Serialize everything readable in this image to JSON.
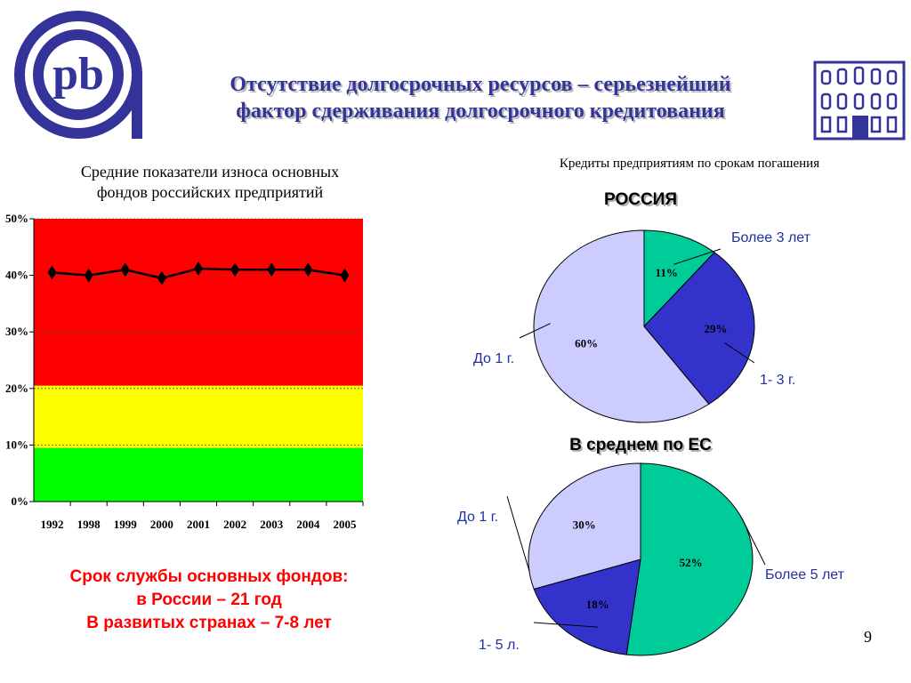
{
  "header": {
    "title_line1": "Отсутствие долгосрочных ресурсов – серьезнейший",
    "title_line2": "фактор сдерживания долгосрочного кредитования",
    "logo_text": "pb",
    "logo_icon": "pb-bank-logo-icon",
    "building_icon": "building-icon"
  },
  "left": {
    "title_line1": "Средние показатели износа основных",
    "title_line2": "фондов российских предприятий"
  },
  "right": {
    "title": "Кредиты предприятиям по срокам погашения"
  },
  "note": {
    "line1": "Срок службы основных фондов:",
    "line2": "в России – 21 год",
    "line3": "В развитых странах – 7-8 лет"
  },
  "slide_number": "9",
  "colors": {
    "title": "#333399",
    "note": "#ff0000",
    "zone_red": "#ff0000",
    "zone_yellow": "#ffff00",
    "zone_green": "#00ff00",
    "slice_light": "#ccccff",
    "slice_teal": "#00cc99",
    "slice_blue": "#3333cc",
    "label_blue": "#1f2f9f"
  },
  "chart_data": [
    {
      "type": "line",
      "title": "",
      "x": [
        "1992",
        "1998",
        "1999",
        "2000",
        "2001",
        "2002",
        "2003",
        "2004",
        "2005"
      ],
      "y_tick_labels": [
        "0%",
        "10%",
        "20%",
        "30%",
        "40%",
        "50%"
      ],
      "ylim": [
        0,
        50
      ],
      "bands": [
        {
          "from": 0,
          "to": 9.5,
          "color": "#00ff00"
        },
        {
          "from": 9.5,
          "to": 20.5,
          "color": "#ffff00"
        },
        {
          "from": 20.5,
          "to": 50,
          "color": "#ff0000"
        }
      ],
      "series": [
        {
          "values": [
            40.5,
            40.0,
            41.0,
            39.5,
            41.2,
            41.0,
            41.0,
            41.0,
            40.0
          ]
        }
      ]
    },
    {
      "type": "pie",
      "title": "РОССИЯ",
      "slices": [
        {
          "label": "Более 3 лет",
          "value": 11,
          "text": "11%",
          "color": "#00cc99"
        },
        {
          "label": "1- 3 г.",
          "value": 29,
          "text": "29%",
          "color": "#3333cc"
        },
        {
          "label": "До 1 г.",
          "value": 60,
          "text": "60%",
          "color": "#ccccff"
        }
      ]
    },
    {
      "type": "pie",
      "title": "В среднем по ЕС",
      "slices": [
        {
          "label": "Более 5 лет",
          "value": 52,
          "text": "52%",
          "color": "#00cc99"
        },
        {
          "label": "1- 5 л.",
          "value": 18,
          "text": "18%",
          "color": "#3333cc"
        },
        {
          "label": "До 1 г.",
          "value": 30,
          "text": "30%",
          "color": "#ccccff"
        }
      ]
    }
  ]
}
